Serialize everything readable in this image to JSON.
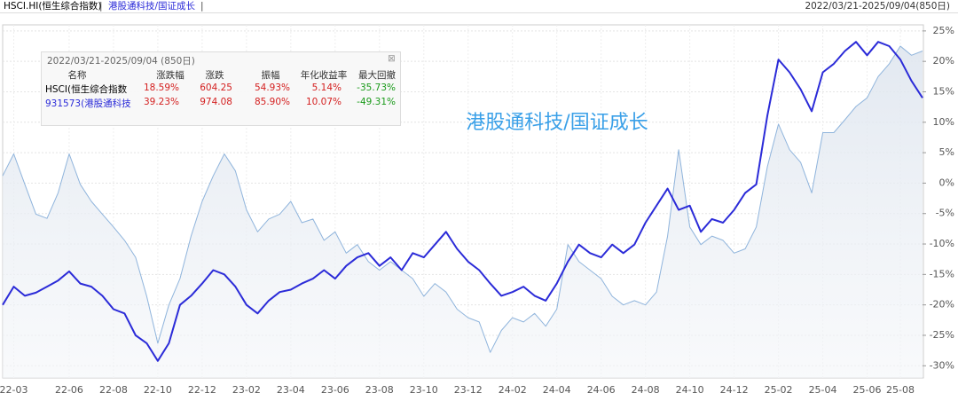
{
  "header": {
    "index1": "HSCI.HI(恒生综合指数)",
    "sep": "|",
    "index2": "港股通科技/国证成长",
    "sep2": "|",
    "range": "2022/03/21-2025/09/04(850日)"
  },
  "chart_data": {
    "type": "line",
    "title": "港股通科技/国证成长",
    "x": [
      null,
      "22-03",
      null,
      null,
      null,
      null,
      "22-06",
      null,
      null,
      null,
      "22-08",
      null,
      null,
      null,
      "22-10",
      null,
      null,
      null,
      "22-12",
      null,
      null,
      null,
      "23-02",
      null,
      null,
      null,
      "23-04",
      null,
      null,
      null,
      "23-06",
      null,
      null,
      null,
      "23-08",
      null,
      null,
      null,
      "23-10",
      null,
      null,
      null,
      "23-12",
      null,
      null,
      null,
      "24-02",
      null,
      null,
      null,
      "24-04",
      null,
      null,
      null,
      "24-06",
      null,
      null,
      null,
      "24-08",
      null,
      null,
      null,
      "24-10",
      null,
      null,
      null,
      "24-12",
      null,
      null,
      null,
      "25-02",
      null,
      null,
      null,
      "25-04",
      null,
      null,
      null,
      "25-06",
      null,
      null,
      "25-08",
      null,
      null
    ],
    "series": [
      {
        "name": "HSCI(恒生综合指数",
        "color": "#8fb4dc",
        "area": true,
        "values": [
          1.2,
          4.8,
          -0.2,
          -5.1,
          -5.8,
          -1.6,
          4.8,
          -0.2,
          -3,
          -5.1,
          -7.2,
          -9.4,
          -12.2,
          -18.6,
          -26.3,
          -20,
          -15.7,
          -8.7,
          -3,
          1.2,
          4.8,
          2,
          -4.4,
          -8,
          -5.9,
          -5.1,
          -3,
          -6.5,
          -5.9,
          -9.4,
          -8,
          -11.5,
          -10.1,
          -12.9,
          -14.3,
          -12.9,
          -14.3,
          -15.7,
          -18.6,
          -16.5,
          -17.9,
          -20.7,
          -22.1,
          -22.8,
          -27.8,
          -24.2,
          -22.1,
          -22.8,
          -21.4,
          -23.5,
          -20.7,
          -10.1,
          -12.9,
          -14.3,
          -15.7,
          -18.6,
          -20,
          -19.3,
          -20,
          -17.9,
          -8.7,
          5.5,
          -7.2,
          -10.1,
          -8.7,
          -9.4,
          -11.5,
          -10.8,
          -7.2,
          2.7,
          9.7,
          5.5,
          3.4,
          -1.6,
          8.3,
          8.3,
          10.4,
          12.6,
          14,
          17.5,
          19.6,
          22.5,
          21,
          21.7
        ]
      },
      {
        "name": "931573(港股通科技",
        "color": "#2b2bd8",
        "area": false,
        "values": [
          -20,
          -17,
          -18.5,
          -18,
          -17,
          -16,
          -14.5,
          -16.5,
          -17,
          -18.5,
          -20.7,
          -21.4,
          -25,
          -26.3,
          -29.2,
          -26.3,
          -20,
          -18.5,
          -16.5,
          -14.3,
          -15,
          -17,
          -20,
          -21.4,
          -19.3,
          -17.9,
          -17.5,
          -16.5,
          -15.7,
          -14.3,
          -15.7,
          -13.6,
          -12.2,
          -11.5,
          -13.6,
          -12.2,
          -14.3,
          -11.5,
          -12.2,
          -10.1,
          -8,
          -10.8,
          -12.9,
          -14.3,
          -16.5,
          -18.5,
          -17.9,
          -17,
          -18.5,
          -19.3,
          -16.5,
          -12.9,
          -10.1,
          -11.5,
          -12.2,
          -10.1,
          -11.5,
          -10.1,
          -6.5,
          -3.7,
          -0.9,
          -4.4,
          -3.7,
          -8,
          -5.9,
          -6.5,
          -4.4,
          -1.6,
          -0.2,
          11.1,
          20.3,
          18.2,
          15.4,
          11.8,
          18.2,
          19.6,
          21.7,
          23.2,
          21,
          23.2,
          22.5,
          20.3,
          16.8,
          14
        ]
      }
    ],
    "ylim": [
      -32,
      26
    ],
    "yticks": [
      {
        "value": -30,
        "label": "-30%"
      },
      {
        "value": -25,
        "label": "-25%"
      },
      {
        "value": -20,
        "label": "-20%"
      },
      {
        "value": -15,
        "label": "-15%"
      },
      {
        "value": -10,
        "label": "-10%"
      },
      {
        "value": -5,
        "label": "-5%"
      },
      {
        "value": 0,
        "label": "0%"
      },
      {
        "value": 5,
        "label": "5%"
      },
      {
        "value": 10,
        "label": "10%"
      },
      {
        "value": 15,
        "label": "15%"
      },
      {
        "value": 20,
        "label": "20%"
      },
      {
        "value": 25,
        "label": "25%"
      }
    ],
    "grid": true
  },
  "info": {
    "range": "2022/03/21-2025/09/04 (850日)",
    "close": "⊠",
    "columns": [
      "名称",
      "涨跌幅",
      "涨跌",
      "振幅",
      "年化收益率",
      "最大回撤"
    ],
    "rows": [
      [
        "18.59%",
        "604.25",
        "54.93%",
        "5.14%",
        "-35.73%"
      ],
      [
        "39.23%",
        "974.08",
        "85.90%",
        "10.07%",
        "-49.31%"
      ]
    ]
  }
}
